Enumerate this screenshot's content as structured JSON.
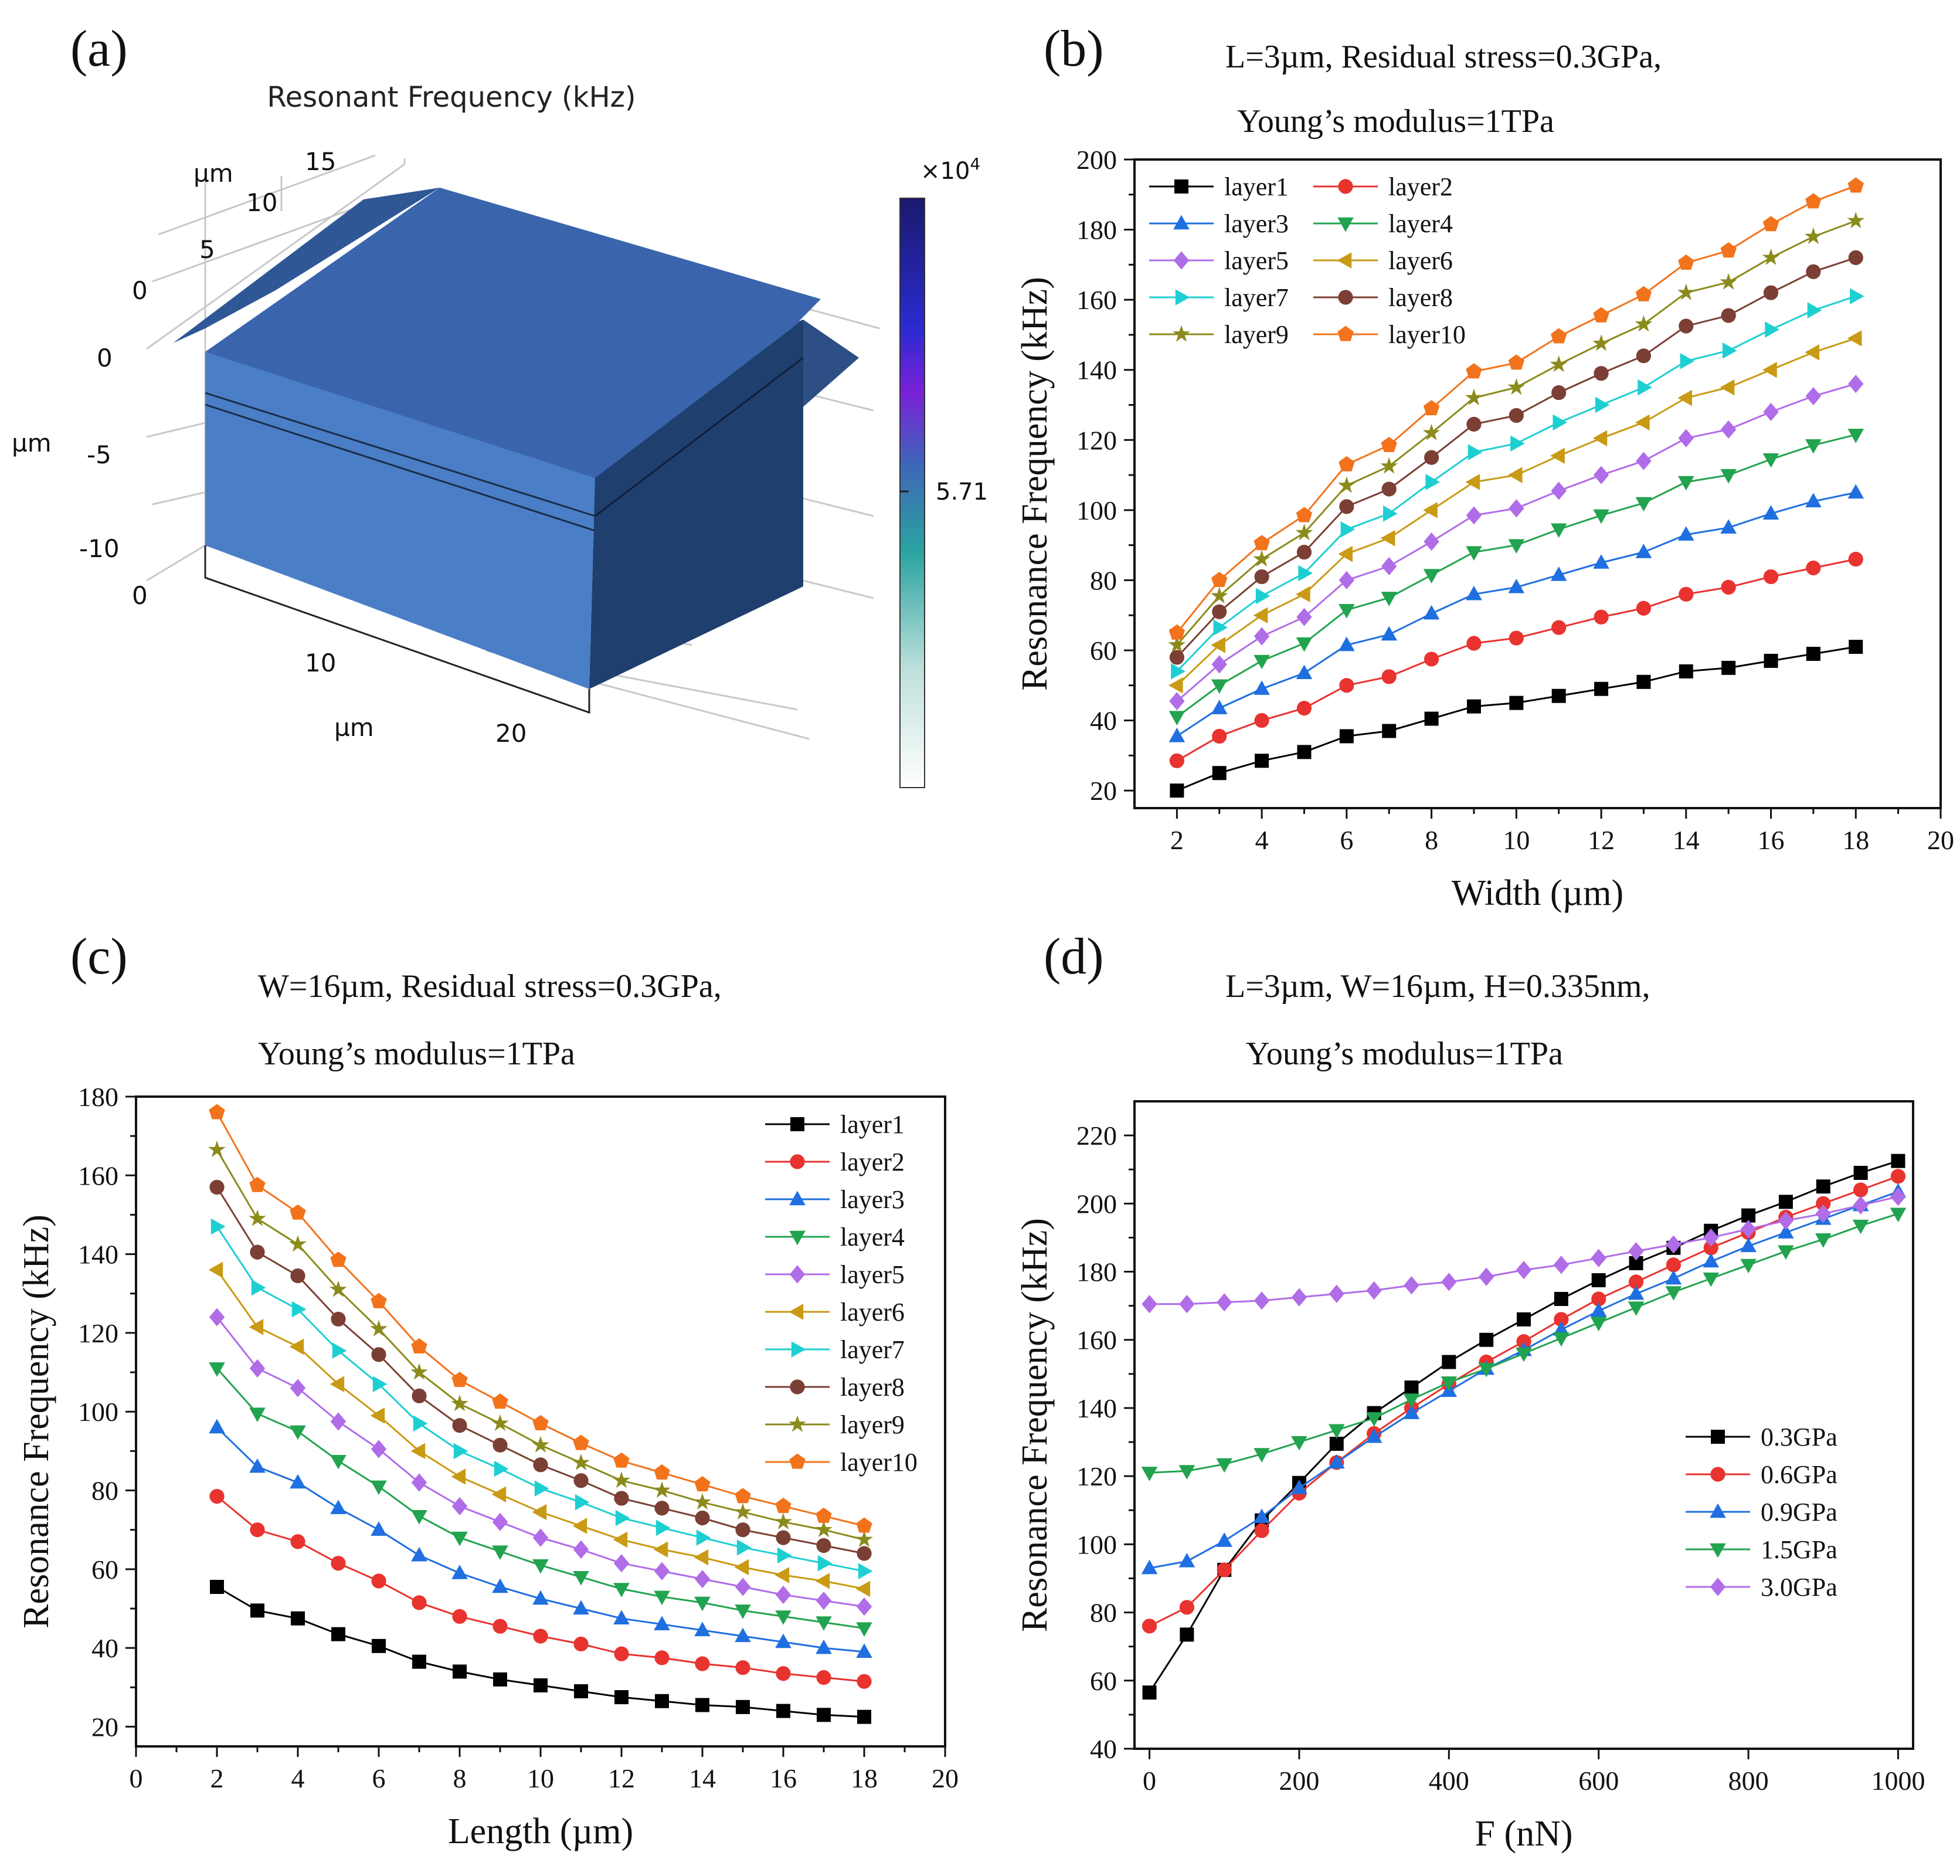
{
  "panels": {
    "a": {
      "label": "(a)",
      "title": "Resonant Frequency (kHz)",
      "colorbar_exponent": "×10",
      "colorbar_exponent_power": "4",
      "colorbar_tick": "5.71",
      "axis_unit": "µm",
      "y_ticks": [
        "0",
        "5",
        "10",
        "15"
      ],
      "z_ticks": [
        "0",
        "-5",
        "-10"
      ],
      "x_ticks": [
        "0",
        "10",
        "20"
      ]
    },
    "b": {
      "label": "(b)",
      "title_line1": "L=3µm, Residual stress=0.3GPa,",
      "title_line2": "Young’s modulus=1TPa"
    },
    "c": {
      "label": "(c)",
      "title_line1": "W=16µm, Residual stress=0.3GPa,",
      "title_line2": "Young’s modulus=1TPa"
    },
    "d": {
      "label": "(d)",
      "title_line1": "L=3µm, W=16µm, H=0.335nm,",
      "title_line2": "Young’s modulus=1TPa"
    }
  },
  "colors": {
    "layer1": "#000000",
    "layer2": "#e8332f",
    "layer3": "#1f6fe0",
    "layer4": "#22a34f",
    "layer5": "#b16ce8",
    "layer6": "#c99a14",
    "layer7": "#1ecfd2",
    "layer8": "#7b3f35",
    "layer9": "#8b8b1c",
    "layer10": "#f2731c",
    "box_front": "#4a7ec6",
    "box_top": "#3a65ad",
    "box_side": "#1f3f6e"
  },
  "chart_data": [
    {
      "id": "b",
      "type": "line",
      "xlabel": "Width (µm)",
      "ylabel": "Resonance Frequency (kHz)",
      "xlim": [
        1,
        20
      ],
      "ylim": [
        15,
        200
      ],
      "xticks": [
        2,
        4,
        6,
        8,
        10,
        12,
        14,
        16,
        18,
        20
      ],
      "yticks": [
        20,
        40,
        60,
        80,
        100,
        120,
        140,
        160,
        180,
        200
      ],
      "legend": "top-left",
      "legend_columns": 2,
      "x": [
        2,
        3,
        4,
        5,
        6,
        7,
        8,
        9,
        10,
        11,
        12,
        13,
        14,
        15,
        16,
        17,
        18
      ],
      "series": [
        {
          "name": "layer1",
          "marker": "square",
          "color": "#000000",
          "values": [
            20,
            25,
            28.5,
            31,
            35.5,
            37,
            40.5,
            44,
            45,
            47,
            49,
            51,
            54,
            55,
            57,
            59,
            61
          ]
        },
        {
          "name": "layer2",
          "marker": "circle",
          "color": "#e8332f",
          "values": [
            28.5,
            35.5,
            40,
            43.5,
            50,
            52.5,
            57.5,
            62,
            63.5,
            66.5,
            69.5,
            72,
            76,
            78,
            81,
            83.5,
            86
          ]
        },
        {
          "name": "layer3",
          "marker": "triangle-up",
          "color": "#1f6fe0",
          "values": [
            35.5,
            43.5,
            49,
            53.5,
            61.5,
            64.5,
            70.5,
            76,
            78,
            81.5,
            85,
            88,
            93,
            95,
            99,
            102.5,
            105
          ]
        },
        {
          "name": "layer4",
          "marker": "triangle-down",
          "color": "#22a34f",
          "values": [
            41,
            50,
            57,
            62,
            71.5,
            75,
            81.5,
            88,
            90,
            94.5,
            98.5,
            102,
            108,
            110,
            114.5,
            118.5,
            121.5
          ]
        },
        {
          "name": "layer5",
          "marker": "diamond",
          "color": "#b16ce8",
          "values": [
            45.5,
            56,
            64,
            69.5,
            80,
            84,
            91,
            98.5,
            100.5,
            105.5,
            110,
            114,
            120.5,
            123,
            128,
            132.5,
            136
          ]
        },
        {
          "name": "layer6",
          "marker": "triangle-left",
          "color": "#c99a14",
          "values": [
            50,
            61.5,
            70,
            76,
            87.5,
            92,
            100,
            108,
            110,
            115.5,
            120.5,
            125,
            132,
            135,
            140,
            145,
            149
          ]
        },
        {
          "name": "layer7",
          "marker": "triangle-right",
          "color": "#1ecfd2",
          "values": [
            54,
            66.5,
            75.5,
            82,
            94.5,
            99,
            108,
            116.5,
            119,
            125,
            130,
            135,
            142.5,
            145.5,
            151.5,
            157,
            161
          ]
        },
        {
          "name": "layer8",
          "marker": "circle",
          "color": "#7b3f35",
          "values": [
            58,
            71,
            81,
            88,
            101,
            106,
            115,
            124.5,
            127,
            133.5,
            139,
            144,
            152.5,
            155.5,
            162,
            168,
            172
          ]
        },
        {
          "name": "layer9",
          "marker": "star",
          "color": "#8b8b1c",
          "values": [
            61.5,
            75.5,
            86,
            93.5,
            107,
            112.5,
            122,
            132,
            135,
            141.5,
            147.5,
            153,
            162,
            165,
            172,
            178,
            182.5
          ]
        },
        {
          "name": "layer10",
          "marker": "pentagon",
          "color": "#f2731c",
          "values": [
            65,
            80,
            90.5,
            98.5,
            113,
            118.5,
            129,
            139.5,
            142,
            149.5,
            155.5,
            161.5,
            170.5,
            174,
            181.5,
            188,
            192.5
          ]
        }
      ]
    },
    {
      "id": "c",
      "type": "line",
      "xlabel": "Length (µm)",
      "ylabel": "Resonance Frequency (kHz)",
      "xlim": [
        0,
        20
      ],
      "ylim": [
        15,
        180
      ],
      "xticks": [
        0,
        2,
        4,
        6,
        8,
        10,
        12,
        14,
        16,
        18,
        20
      ],
      "yticks": [
        20,
        40,
        60,
        80,
        100,
        120,
        140,
        160,
        180
      ],
      "legend": "top-right",
      "legend_columns": 1,
      "x": [
        2,
        3,
        4,
        5,
        6,
        7,
        8,
        9,
        10,
        11,
        12,
        13,
        14,
        15,
        16,
        17,
        18
      ],
      "series": [
        {
          "name": "layer1",
          "marker": "square",
          "color": "#000000",
          "values": [
            55.5,
            49.5,
            47.5,
            43.5,
            40.5,
            36.5,
            34,
            32,
            30.5,
            29,
            27.5,
            26.5,
            25.5,
            25,
            24,
            23,
            22.5
          ]
        },
        {
          "name": "layer2",
          "marker": "circle",
          "color": "#e8332f",
          "values": [
            78.5,
            70,
            67,
            61.5,
            57,
            51.5,
            48,
            45.5,
            43,
            41,
            38.5,
            37.5,
            36,
            35,
            33.5,
            32.5,
            31.5
          ]
        },
        {
          "name": "layer3",
          "marker": "triangle-up",
          "color": "#1f6fe0",
          "values": [
            96,
            86,
            82,
            75.5,
            70,
            63.5,
            59,
            55.5,
            52.5,
            50,
            47.5,
            46,
            44.5,
            43,
            41.5,
            40,
            39
          ]
        },
        {
          "name": "layer4",
          "marker": "triangle-down",
          "color": "#22a34f",
          "values": [
            111,
            99.5,
            95,
            87.5,
            81,
            73.5,
            68,
            64.5,
            61,
            58,
            55,
            53,
            51.5,
            49.5,
            48,
            46.5,
            45
          ]
        },
        {
          "name": "layer5",
          "marker": "diamond",
          "color": "#b16ce8",
          "values": [
            124,
            111,
            106,
            97.5,
            90.5,
            82,
            76,
            72,
            68,
            65,
            61.5,
            59.5,
            57.5,
            55.5,
            53.5,
            52,
            50.5
          ]
        },
        {
          "name": "layer6",
          "marker": "triangle-left",
          "color": "#c99a14",
          "values": [
            136,
            121.5,
            116.5,
            107,
            99,
            90,
            83.5,
            79,
            74.5,
            71,
            67.5,
            65,
            63,
            60.5,
            58.5,
            57,
            55
          ]
        },
        {
          "name": "layer7",
          "marker": "triangle-right",
          "color": "#1ecfd2",
          "values": [
            147,
            131.5,
            126,
            115.5,
            107,
            97,
            90,
            85.5,
            80.5,
            77,
            73,
            70.5,
            68,
            65.5,
            63.5,
            61.5,
            59.5
          ]
        },
        {
          "name": "layer8",
          "marker": "circle",
          "color": "#7b3f35",
          "values": [
            157,
            140.5,
            134.5,
            123.5,
            114.5,
            104,
            96.5,
            91.5,
            86.5,
            82.5,
            78,
            75.5,
            73,
            70,
            68,
            66,
            64
          ]
        },
        {
          "name": "layer9",
          "marker": "star",
          "color": "#8b8b1c",
          "values": [
            166.5,
            149,
            142.5,
            131,
            121,
            110,
            102,
            97,
            91.5,
            87,
            82.5,
            80,
            77,
            74.5,
            72,
            70,
            67.5
          ]
        },
        {
          "name": "layer10",
          "marker": "pentagon",
          "color": "#f2731c",
          "values": [
            176,
            157.5,
            150.5,
            138.5,
            128,
            116.5,
            108,
            102.5,
            97,
            92,
            87.5,
            84.5,
            81.5,
            78.5,
            76,
            73.5,
            71
          ]
        }
      ]
    },
    {
      "id": "d",
      "type": "line",
      "xlabel": "F (nN)",
      "ylabel": "Resonance Frequency (kHz)",
      "xlim": [
        -20,
        1020
      ],
      "ylim": [
        40,
        230
      ],
      "xticks": [
        0,
        200,
        400,
        600,
        800,
        1000
      ],
      "yticks": [
        40,
        60,
        80,
        100,
        120,
        140,
        160,
        180,
        200,
        220
      ],
      "legend": "center-right",
      "legend_columns": 1,
      "x": [
        0,
        50,
        100,
        150,
        200,
        250,
        300,
        350,
        400,
        450,
        500,
        550,
        600,
        650,
        700,
        750,
        800,
        850,
        900,
        950,
        1000
      ],
      "series": [
        {
          "name": "0.3GPa",
          "marker": "square",
          "color": "#000000",
          "values": [
            56.5,
            73.5,
            92.5,
            107,
            118,
            129.5,
            138.5,
            146,
            153.5,
            160,
            166,
            172,
            177.5,
            182.5,
            187,
            192,
            196.5,
            200.5,
            205,
            209,
            212.5
          ]
        },
        {
          "name": "0.6GPa",
          "marker": "circle",
          "color": "#e8332f",
          "values": [
            76,
            81.5,
            92.5,
            104,
            115,
            124,
            132.5,
            140,
            147,
            153.5,
            159.5,
            166,
            172,
            177,
            182,
            187,
            191.5,
            196,
            200,
            204,
            208
          ]
        },
        {
          "name": "0.9GPa",
          "marker": "triangle-up",
          "color": "#1f6fe0",
          "values": [
            93,
            95,
            101,
            108,
            116.5,
            124,
            131.5,
            138.5,
            145,
            151.5,
            157,
            163,
            168.5,
            173.5,
            178,
            183,
            187.5,
            191.5,
            195.5,
            199.5,
            203.5
          ]
        },
        {
          "name": "1.5GPa",
          "marker": "triangle-down",
          "color": "#22a34f",
          "values": [
            121,
            121.5,
            123.5,
            126.5,
            130,
            133.5,
            137,
            142.5,
            147.5,
            151.5,
            156,
            160.5,
            165,
            169.5,
            174,
            178,
            182,
            186,
            189.5,
            193.5,
            197
          ]
        },
        {
          "name": "3.0GPa",
          "marker": "diamond",
          "color": "#b16ce8",
          "values": [
            170.5,
            170.5,
            171,
            171.5,
            172.5,
            173.5,
            174.5,
            176,
            177,
            178.5,
            180.5,
            182,
            184,
            186,
            188,
            190,
            192.5,
            195,
            197,
            199.5,
            202
          ]
        }
      ]
    }
  ]
}
